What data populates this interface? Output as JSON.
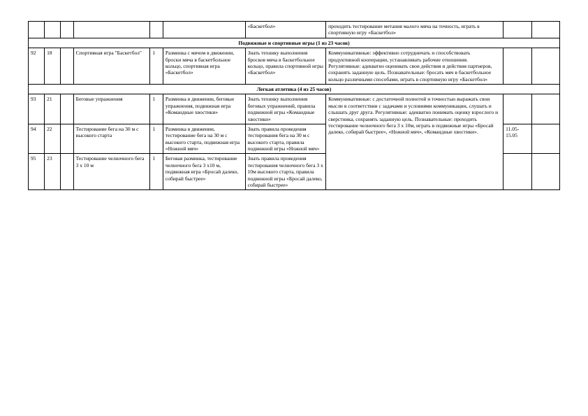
{
  "top": {
    "f": "«Баскетбол»",
    "h": "проходить тестирование метания малого мяча на точность, играть в спортивную игру «Баскетбол»"
  },
  "section1": "Подвижные и спортивные игры (1 из 23 часов)",
  "row92": {
    "a": "92",
    "b": "18",
    "d": "Спортивная игра \"Баскетбол\"",
    "e": "1",
    "f": "Разминка с мячом в движении, броски мяча в баскетбольное кольцо, спортивная игра «Баскетбол»",
    "g": "Знать технику выполнения бросков мяча в баскетбольное кольцо, правила спортивной игры «Баскетбол»",
    "h": "Коммуникативные: эффективно сотрудничать и способствовать продуктивной кооперации, устанавливать рабочие отношения. Регулятивные: адекватно оценивать свои действия и действия партнеров, сохранять заданную цель. Познавательные: бросать мяч в баскетбольное кольцо различными способами, играть в спортивную игру «Баскетбол»"
  },
  "section2": "Легкая атлетика (4 из 25 часов)",
  "row93": {
    "a": "93",
    "b": "21",
    "d": "Беговые упражнения",
    "e": "1",
    "f": "Разминка в движении, беговые упражнения, подвижная игра «Командные хвостики»",
    "g": "Знать технику выполнения беговых упражнений, правила подвижной игры «Командные хвостики»"
  },
  "row94": {
    "a": "94",
    "b": "22",
    "d": "Тестирование бега на 30 м с высокого старта",
    "e": "1",
    "f": "Разминка в движении, тестирование бега на 30 м с высокого старта, подвижная игра «Ножной мяч»",
    "g": "Знать правила проведения тестирования бега на 30 м с высокого старта, правила подвижной игры «Ножной мяч»",
    "i": "11.05-15.05"
  },
  "row95": {
    "a": "95",
    "b": "23",
    "d": "Тестирование челночного бега 3 х 10 м",
    "e": "1",
    "f": "Беговая разминка, тестирование челночного бега 3 х10 м, подвижная игра «Бросай далеко, собирай быстрее»",
    "g": "Знать правила проведения тестирования челночного бега 3 х 10м высокого старта, правила подвижной игры «Бросай далеко, собирай быстрее»"
  },
  "merged_h": "Коммуникативные: с достаточной полнотой и точностью выражать свои мысли в соответствии с задачами и условиями коммуникации, слушать и слышать друг друга. Регулятивные: адекватно понимать оценку взрослого и сверстника, сохранять заданную цель. Познавательные: проходить тестирование челночного бега 3 х 10м, играть в подвижные игры «Бросай далеко, собирай быстрее», «Ножной мяч», «Командные хвостики»."
}
